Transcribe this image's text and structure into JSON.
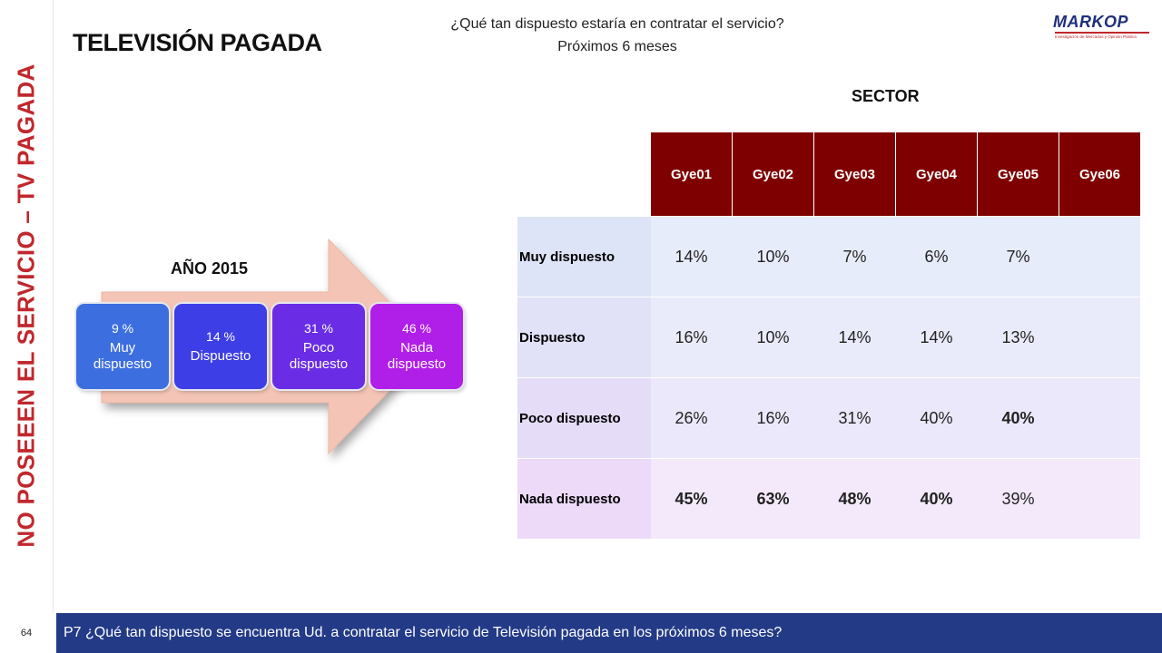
{
  "side_title": "NO POSEEEN EL SERVICIO – TV PAGADA",
  "title": "TELEVISIÓN PAGADA",
  "question": {
    "line1": "¿Qué tan dispuesto estaría en contratar el servicio?",
    "line2": "Próximos 6 meses"
  },
  "logo": {
    "text": "MARKOP",
    "subtitle": "Investigación de Mercados y Opinión Pública"
  },
  "sector_label": "SECTOR",
  "year_label": "AÑO 2015",
  "summary": [
    {
      "pct": "9 %",
      "label": "Muy dispuesto",
      "color": "#3d6ee0"
    },
    {
      "pct": "14 %",
      "label": "Dispuesto",
      "color": "#3e3ee6"
    },
    {
      "pct": "31 %",
      "label": "Poco dispuesto",
      "color": "#6a2ce4"
    },
    {
      "pct": "46 %",
      "label": "Nada dispuesto",
      "color": "#b01fe8"
    }
  ],
  "table": {
    "columns": [
      "Gye01",
      "Gye02",
      "Gye03",
      "Gye04",
      "Gye05",
      "Gye06"
    ],
    "rows": [
      {
        "label": "Muy dispuesto",
        "values": [
          "14%",
          "10%",
          "7%",
          "6%",
          "7%",
          ""
        ]
      },
      {
        "label": "Dispuesto",
        "values": [
          "16%",
          "10%",
          "14%",
          "14%",
          "13%",
          ""
        ]
      },
      {
        "label": "Poco dispuesto",
        "values": [
          "26%",
          "16%",
          "31%",
          "40%",
          "40%",
          ""
        ]
      },
      {
        "label": "Nada dispuesto",
        "values": [
          "45%",
          "63%",
          "48%",
          "40%",
          "39%",
          ""
        ]
      }
    ],
    "header_color": "#7f0000"
  },
  "footer": {
    "page_number": "64",
    "text": "P7 ¿Qué tan dispuesto se encuentra Ud. a contratar el servicio de Televisión pagada en los próximos 6 meses?",
    "bar_color": "#233a86"
  },
  "accent_color": "#c0282d"
}
